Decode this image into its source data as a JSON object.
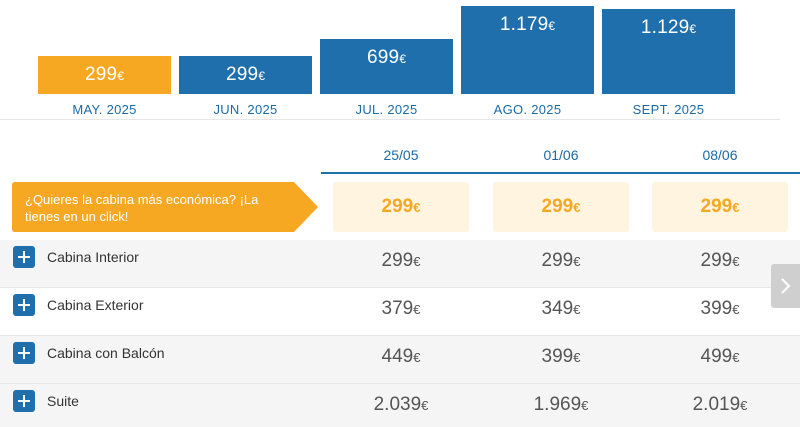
{
  "currency": "€",
  "colors": {
    "accent": "#f7a823",
    "primary": "#1f6fad",
    "highlight_bg": "#fff4e0"
  },
  "months": [
    {
      "label": "MAY. 2025",
      "price": "299",
      "selected": true
    },
    {
      "label": "JUN. 2025",
      "price": "299",
      "selected": false
    },
    {
      "label": "JUL. 2025",
      "price": "699",
      "selected": false
    },
    {
      "label": "AGO. 2025",
      "price": "1.179",
      "selected": false
    },
    {
      "label": "SEPT. 2025",
      "price": "1.129",
      "selected": false
    }
  ],
  "dates": [
    "25/05",
    "01/06",
    "08/06"
  ],
  "promo": {
    "text": "¿Quieres la cabina más económica? ¡La tienes en un click!",
    "cheapest": [
      "299",
      "299",
      "299"
    ]
  },
  "cabins": [
    {
      "name": "Cabina Interior",
      "prices": [
        "299",
        "299",
        "299"
      ]
    },
    {
      "name": "Cabina Exterior",
      "prices": [
        "379",
        "349",
        "399"
      ]
    },
    {
      "name": "Cabina con Balcón",
      "prices": [
        "449",
        "399",
        "499"
      ]
    },
    {
      "name": "Suite",
      "prices": [
        "2.039",
        "1.969",
        "2.019"
      ]
    }
  ],
  "icons": {
    "expand": "plus-icon",
    "next": "chevron-right-icon"
  }
}
